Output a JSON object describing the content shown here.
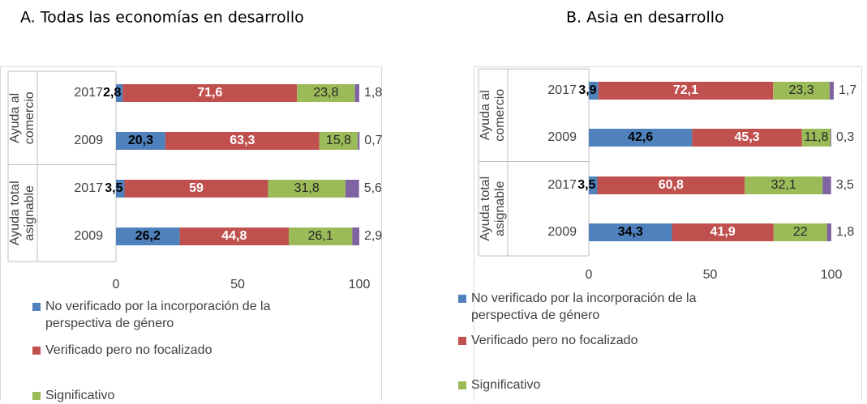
{
  "chart_data": [
    {
      "type": "stacked-bar-horizontal",
      "title": "A. Todas las economías en desarrollo",
      "categories": [
        "2017",
        "2009",
        "2017",
        "2009"
      ],
      "group_labels": [
        [
          "Ayuda al",
          "comercio"
        ],
        [
          "Ayuda total",
          "asignable"
        ]
      ],
      "series": [
        {
          "name": "No verificado por la incorporación de la perspectiva de género",
          "color": "#4f81bd",
          "values": [
            2.8,
            20.3,
            3.5,
            26.2
          ],
          "value_labels": [
            "2,8",
            "20,3",
            "3,5",
            "26,2"
          ]
        },
        {
          "name": "Verificado pero no focalizado",
          "color": "#c0504d",
          "values": [
            71.6,
            63.3,
            59,
            44.8
          ],
          "value_labels": [
            "71,6",
            "63,3",
            "59",
            "44,8"
          ]
        },
        {
          "name": "Significativo",
          "color": "#9bbb59",
          "values": [
            23.8,
            15.8,
            31.8,
            26.1
          ],
          "value_labels": [
            "23,8",
            "15,8",
            "31,8",
            "26,1"
          ]
        },
        {
          "color": "#8064a2",
          "values": [
            1.8,
            0.7,
            5.6,
            2.9
          ],
          "value_labels": [
            "1,8",
            "0,7",
            "5,6",
            "2,9"
          ]
        }
      ],
      "xlim": [
        0,
        100
      ],
      "xticks": [
        0,
        50,
        100
      ],
      "grid": false
    },
    {
      "type": "stacked-bar-horizontal",
      "title": "B. Asia en desarrollo",
      "categories": [
        "2017",
        "2009",
        "2017",
        "2009"
      ],
      "group_labels": [
        [
          "Ayuda al",
          "comercio"
        ],
        [
          "Ayuda total",
          "asignable"
        ]
      ],
      "series": [
        {
          "name": "No verificado por la incorporación de la perspectiva de género",
          "color": "#4f81bd",
          "values": [
            3.9,
            42.6,
            3.5,
            34.3
          ],
          "value_labels": [
            "3,9",
            "42,6",
            "3,5",
            "34,3"
          ]
        },
        {
          "name": "Verificado pero no focalizado",
          "color": "#c0504d",
          "values": [
            72.1,
            45.3,
            60.8,
            41.9
          ],
          "value_labels": [
            "72,1",
            "45,3",
            "60,8",
            "41,9"
          ]
        },
        {
          "name": "Significativo",
          "color": "#9bbb59",
          "values": [
            23.3,
            11.8,
            32.1,
            22
          ],
          "value_labels": [
            "23,3",
            "11,8",
            "32,1",
            "22"
          ]
        },
        {
          "color": "#8064a2",
          "values": [
            1.7,
            0.3,
            3.5,
            1.8
          ],
          "value_labels": [
            "1,7",
            "0,3",
            "3,5",
            "1,8"
          ]
        }
      ],
      "xlim": [
        0,
        100
      ],
      "xticks": [
        0,
        50,
        100
      ],
      "grid": false
    }
  ]
}
